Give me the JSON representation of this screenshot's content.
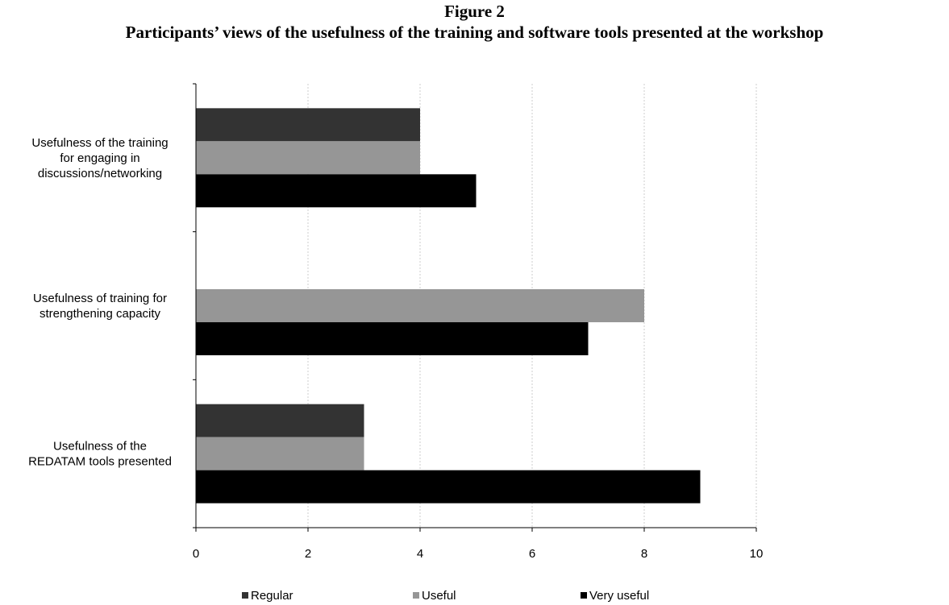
{
  "figure": {
    "number": "Figure 2",
    "caption": "Participants’ views of the usefulness of the training and software tools presented at the workshop"
  },
  "chart_data": {
    "type": "bar",
    "orientation": "horizontal",
    "categories": [
      [
        "Usefulness of the training",
        "for engaging in",
        "discussions/networking"
      ],
      [
        "Usefulness of training for",
        "strengthening capacity"
      ],
      [
        "Usefulness of the",
        "REDATAM tools presented"
      ]
    ],
    "series": [
      {
        "name": "Regular",
        "color": "#333333",
        "values": [
          4,
          0,
          3
        ]
      },
      {
        "name": "Useful",
        "color": "#969696",
        "values": [
          4,
          8,
          3
        ]
      },
      {
        "name": "Very useful",
        "color": "#000000",
        "values": [
          5,
          7,
          9
        ]
      }
    ],
    "xlim": [
      0,
      10
    ],
    "xticks": [
      0,
      2,
      4,
      6,
      8,
      10
    ],
    "grid": "vertical",
    "legend_position": "bottom"
  }
}
